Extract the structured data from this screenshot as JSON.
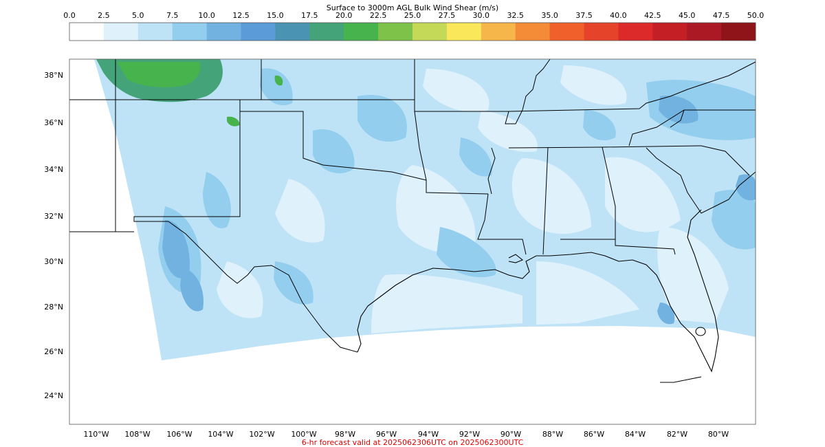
{
  "colorbar": {
    "title": "Surface to 3000m AGL Bulk Wind Shear (m/s)",
    "ticks": [
      "0.0",
      "2.5",
      "5.0",
      "7.5",
      "10.0",
      "12.5",
      "15.0",
      "17.5",
      "20.0",
      "22.5",
      "25.0",
      "27.5",
      "30.0",
      "32.5",
      "35.0",
      "37.5",
      "40.0",
      "42.5",
      "45.0",
      "47.5",
      "50.0"
    ],
    "colors": [
      "#ffffff",
      "#dff1fb",
      "#bfe3f6",
      "#93ceee",
      "#71b2e0",
      "#5b9bd7",
      "#4a93b2",
      "#45a37a",
      "#47b34c",
      "#7ec24a",
      "#c3d957",
      "#fbe75a",
      "#f7b64a",
      "#f48b37",
      "#f0602b",
      "#e6442a",
      "#dc2a2a",
      "#c51f26",
      "#ab1a24",
      "#8f1419"
    ]
  },
  "map": {
    "lat_labels": [
      "38°N",
      "36°N",
      "34°N",
      "32°N",
      "30°N",
      "28°N",
      "26°N",
      "24°N"
    ],
    "lon_labels": [
      "110°W",
      "108°W",
      "106°W",
      "104°W",
      "102°W",
      "100°W",
      "98°W",
      "96°W",
      "94°W",
      "92°W",
      "90°W",
      "88°W",
      "86°W",
      "84°W",
      "82°W",
      "80°W"
    ]
  },
  "footer": "6-hr forecast valid at 2025062306UTC on 2025062300UTC"
}
